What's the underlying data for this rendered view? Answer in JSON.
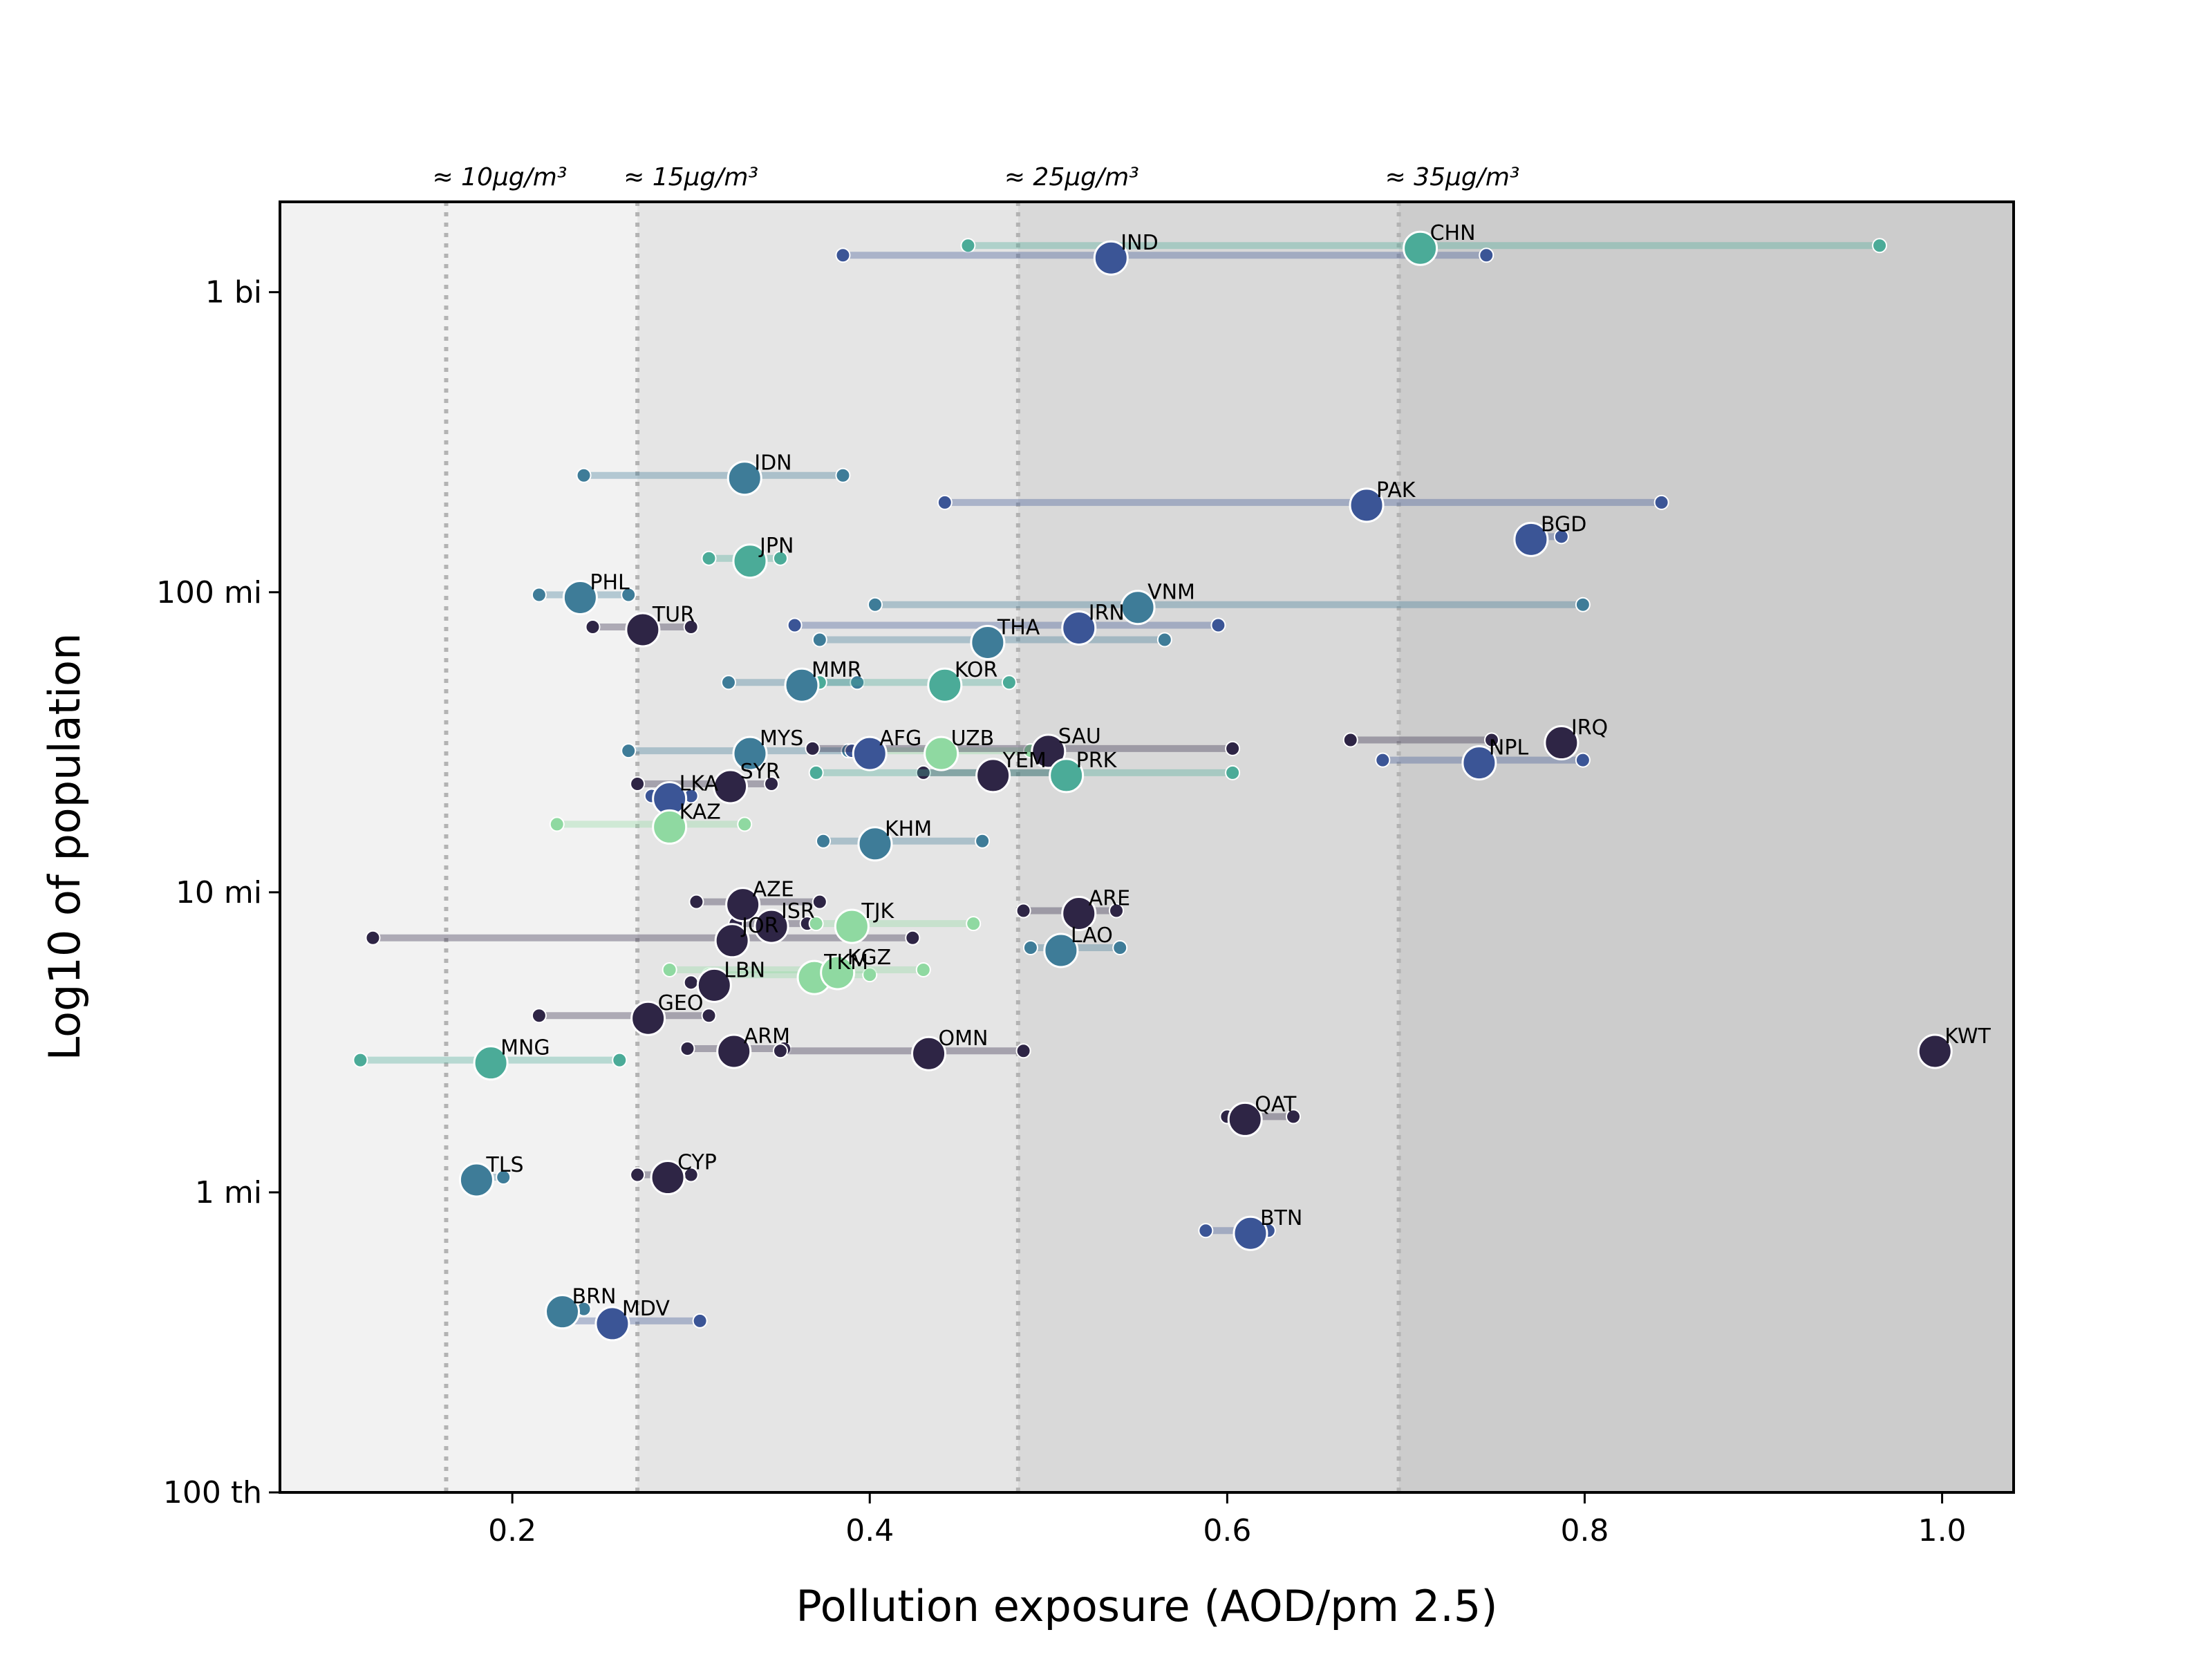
{
  "chart_data": {
    "type": "scatter",
    "xlabel": "Pollution exposure (AOD/pm 2.5)",
    "ylabel": "Log10 of population",
    "xlim": [
      0.07,
      1.04
    ],
    "ylim": [
      100000,
      2000000000
    ],
    "y_scale": "log",
    "x_ticks": [
      {
        "value": 0.2,
        "label": "0.2"
      },
      {
        "value": 0.4,
        "label": "0.4"
      },
      {
        "value": 0.6,
        "label": "0.6"
      },
      {
        "value": 0.8,
        "label": "0.8"
      },
      {
        "value": 1.0,
        "label": "1.0"
      }
    ],
    "y_ticks": [
      {
        "value": 1000000000,
        "label": "1 bi"
      },
      {
        "value": 100000000,
        "label": "100 mi"
      },
      {
        "value": 10000000,
        "label": "10 mi"
      },
      {
        "value": 1000000,
        "label": "1 mi"
      },
      {
        "value": 100000,
        "label": "100 th"
      }
    ],
    "reference_lines": [
      {
        "x": 0.163,
        "label": "≈ 10μg/m³"
      },
      {
        "x": 0.27,
        "label": "≈ 15μg/m³"
      },
      {
        "x": 0.483,
        "label": "≈ 25μg/m³"
      },
      {
        "x": 0.696,
        "label": "≈ 35μg/m³"
      }
    ],
    "bands": [
      {
        "from": 0.07,
        "to": 0.27,
        "color": "#f2f2f2"
      },
      {
        "from": 0.27,
        "to": 0.483,
        "color": "#e5e5e5"
      },
      {
        "from": 0.483,
        "to": 0.696,
        "color": "#d9d9d9"
      },
      {
        "from": 0.696,
        "to": 1.04,
        "color": "#cccccc"
      }
    ],
    "palette": {
      "dark": "#2e2545",
      "navy": "#3b5596",
      "teal": "#3e7c98",
      "green": "#4bab98",
      "light": "#8fd9a1"
    },
    "points": [
      {
        "code": "CHN",
        "pop": 1400000000,
        "x": 0.708,
        "min": 0.455,
        "max": 0.965,
        "color": "green"
      },
      {
        "code": "IND",
        "pop": 1300000000,
        "x": 0.535,
        "min": 0.385,
        "max": 0.745,
        "color": "navy"
      },
      {
        "code": "IDN",
        "pop": 240000000,
        "x": 0.33,
        "min": 0.24,
        "max": 0.385,
        "color": "teal"
      },
      {
        "code": "PAK",
        "pop": 195000000,
        "x": 0.678,
        "min": 0.442,
        "max": 0.843,
        "color": "navy"
      },
      {
        "code": "BGD",
        "pop": 150000000,
        "x": 0.77,
        "min": 0.77,
        "max": 0.787,
        "color": "navy"
      },
      {
        "code": "JPN",
        "pop": 127000000,
        "x": 0.333,
        "min": 0.31,
        "max": 0.35,
        "color": "green"
      },
      {
        "code": "PHL",
        "pop": 96000000,
        "x": 0.238,
        "min": 0.215,
        "max": 0.265,
        "color": "teal"
      },
      {
        "code": "VNM",
        "pop": 89000000,
        "x": 0.55,
        "min": 0.403,
        "max": 0.799,
        "color": "teal"
      },
      {
        "code": "TUR",
        "pop": 75000000,
        "x": 0.273,
        "min": 0.245,
        "max": 0.3,
        "color": "dark"
      },
      {
        "code": "IRN",
        "pop": 76000000,
        "x": 0.517,
        "min": 0.358,
        "max": 0.595,
        "color": "navy"
      },
      {
        "code": "THA",
        "pop": 68000000,
        "x": 0.466,
        "min": 0.372,
        "max": 0.565,
        "color": "teal"
      },
      {
        "code": "MMR",
        "pop": 49000000,
        "x": 0.362,
        "min": 0.321,
        "max": 0.393,
        "color": "teal"
      },
      {
        "code": "KOR",
        "pop": 49000000,
        "x": 0.442,
        "min": 0.372,
        "max": 0.478,
        "color": "green"
      },
      {
        "code": "MYS",
        "pop": 29000000,
        "x": 0.333,
        "min": 0.265,
        "max": 0.388,
        "color": "teal"
      },
      {
        "code": "AFG",
        "pop": 29000000,
        "x": 0.4,
        "min": 0.39,
        "max": 0.405,
        "color": "navy"
      },
      {
        "code": "UZB",
        "pop": 29000000,
        "x": 0.44,
        "min": 0.395,
        "max": 0.49,
        "color": "light"
      },
      {
        "code": "SAU",
        "pop": 29500000,
        "x": 0.5,
        "min": 0.368,
        "max": 0.603,
        "color": "dark"
      },
      {
        "code": "IRQ",
        "pop": 31500000,
        "x": 0.787,
        "min": 0.669,
        "max": 0.748,
        "color": "dark"
      },
      {
        "code": "NPL",
        "pop": 27000000,
        "x": 0.741,
        "min": 0.687,
        "max": 0.799,
        "color": "navy"
      },
      {
        "code": "YEM",
        "pop": 24500000,
        "x": 0.469,
        "min": 0.43,
        "max": 0.512,
        "color": "dark"
      },
      {
        "code": "PRK",
        "pop": 24500000,
        "x": 0.51,
        "min": 0.37,
        "max": 0.603,
        "color": "green"
      },
      {
        "code": "SYR",
        "pop": 22500000,
        "x": 0.322,
        "min": 0.27,
        "max": 0.345,
        "color": "dark"
      },
      {
        "code": "LKA",
        "pop": 20500000,
        "x": 0.288,
        "min": 0.278,
        "max": 0.3,
        "color": "navy"
      },
      {
        "code": "KAZ",
        "pop": 16500000,
        "x": 0.288,
        "min": 0.225,
        "max": 0.33,
        "color": "light"
      },
      {
        "code": "KHM",
        "pop": 14500000,
        "x": 0.403,
        "min": 0.374,
        "max": 0.463,
        "color": "teal"
      },
      {
        "code": "AZE",
        "pop": 9100000,
        "x": 0.329,
        "min": 0.303,
        "max": 0.372,
        "color": "dark"
      },
      {
        "code": "ARE",
        "pop": 8500000,
        "x": 0.517,
        "min": 0.486,
        "max": 0.538,
        "color": "dark"
      },
      {
        "code": "ISR",
        "pop": 7700000,
        "x": 0.345,
        "min": 0.325,
        "max": 0.365,
        "color": "dark"
      },
      {
        "code": "TJK",
        "pop": 7700000,
        "x": 0.39,
        "min": 0.37,
        "max": 0.458,
        "color": "light"
      },
      {
        "code": "JOR",
        "pop": 6900000,
        "x": 0.323,
        "min": 0.122,
        "max": 0.424,
        "color": "dark"
      },
      {
        "code": "LAO",
        "pop": 6400000,
        "x": 0.507,
        "min": 0.49,
        "max": 0.54,
        "color": "teal"
      },
      {
        "code": "TKM",
        "pop": 5200000,
        "x": 0.369,
        "min": 0.31,
        "max": 0.4,
        "color": "light"
      },
      {
        "code": "KGZ",
        "pop": 5400000,
        "x": 0.382,
        "min": 0.288,
        "max": 0.43,
        "color": "light"
      },
      {
        "code": "LBN",
        "pop": 4900000,
        "x": 0.313,
        "min": 0.3,
        "max": 0.318,
        "color": "dark"
      },
      {
        "code": "GEO",
        "pop": 3800000,
        "x": 0.276,
        "min": 0.215,
        "max": 0.31,
        "color": "dark"
      },
      {
        "code": "ARM",
        "pop": 2950000,
        "x": 0.324,
        "min": 0.298,
        "max": 0.352,
        "color": "dark"
      },
      {
        "code": "OMN",
        "pop": 2900000,
        "x": 0.433,
        "min": 0.35,
        "max": 0.486,
        "color": "dark"
      },
      {
        "code": "MNG",
        "pop": 2700000,
        "x": 0.188,
        "min": 0.115,
        "max": 0.26,
        "color": "green"
      },
      {
        "code": "KWT",
        "pop": 2950000,
        "x": 0.996,
        "min": 0.996,
        "max": 0.996,
        "color": "dark"
      },
      {
        "code": "QAT",
        "pop": 1750000,
        "x": 0.61,
        "min": 0.6,
        "max": 0.637,
        "color": "dark"
      },
      {
        "code": "TLS",
        "pop": 1100000,
        "x": 0.18,
        "min": 0.175,
        "max": 0.195,
        "color": "teal"
      },
      {
        "code": "CYP",
        "pop": 1120000,
        "x": 0.287,
        "min": 0.27,
        "max": 0.3,
        "color": "dark"
      },
      {
        "code": "BTN",
        "pop": 730000,
        "x": 0.613,
        "min": 0.588,
        "max": 0.623,
        "color": "navy"
      },
      {
        "code": "BRN",
        "pop": 400000,
        "x": 0.228,
        "min": 0.225,
        "max": 0.24,
        "color": "teal"
      },
      {
        "code": "MDV",
        "pop": 365000,
        "x": 0.256,
        "min": 0.225,
        "max": 0.305,
        "color": "navy"
      }
    ]
  }
}
